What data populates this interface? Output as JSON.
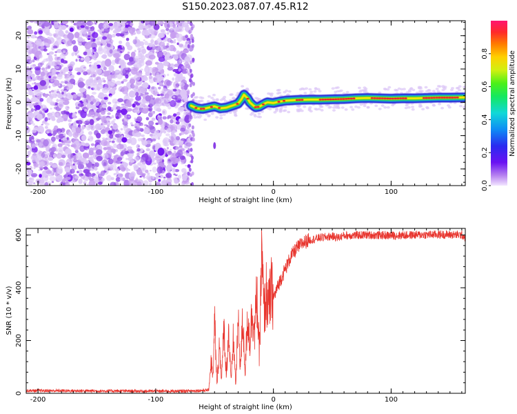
{
  "title": "S150.2023.087.07.45.R12",
  "colors": {
    "snr_line": "#e8352e",
    "spec_background": "#ffffff",
    "spec_noise": [
      "#dcc6f7",
      "#c79ef0",
      "#a872ea",
      "#8a3fe6",
      "#7010f0"
    ],
    "signal_core": "#e8212e",
    "signal_mid": "#ffe600",
    "signal_edge": "#2ac93a",
    "signal_halo": "#19b6d8",
    "signal_outer": "#2b2bd8"
  },
  "chart_data": [
    {
      "type": "heatmap",
      "title": "",
      "xlabel": "Height of straight line (km)",
      "ylabel": "Frequency (Hz)",
      "xlim": [
        -210,
        163
      ],
      "ylim": [
        -25,
        24.5
      ],
      "xticks": [
        -200,
        -100,
        0,
        100
      ],
      "yticks": [
        -20,
        -10,
        0,
        10,
        20
      ],
      "noise_region_x": [
        -210,
        -70
      ],
      "signal_trace": {
        "x": [
          -70,
          -65,
          -60,
          -55,
          -50,
          -45,
          -40,
          -35,
          -30,
          -27,
          -25,
          -22,
          -20,
          -17,
          -15,
          -12,
          -10,
          -7,
          -5,
          0,
          5,
          10,
          15,
          20,
          30,
          40,
          50,
          60,
          70,
          80,
          90,
          100,
          110,
          120,
          130,
          140,
          150,
          163
        ],
        "y": [
          -1.0,
          -1.8,
          -2.0,
          -1.6,
          -1.2,
          -1.8,
          -1.6,
          -1.0,
          -0.4,
          1.0,
          2.3,
          1.2,
          0.0,
          -1.0,
          -1.5,
          -1.3,
          -0.9,
          -0.3,
          0.0,
          -0.2,
          0.2,
          0.5,
          0.6,
          0.7,
          0.8,
          0.8,
          0.9,
          1.0,
          1.2,
          1.3,
          1.2,
          1.1,
          1.2,
          1.2,
          1.3,
          1.4,
          1.4,
          1.5
        ]
      },
      "colorbar": {
        "label": "Normalized spectral amplitude",
        "range": [
          0,
          1
        ],
        "ticks": [
          "0.0",
          "0.2",
          "0.4",
          "0.6",
          "0.8"
        ],
        "tick_values": [
          0.0,
          0.2,
          0.4,
          0.6,
          0.8
        ]
      }
    },
    {
      "type": "line",
      "title": "",
      "xlabel": "Height of straight line (km)",
      "ylabel": "SNR (10 * v/v)",
      "xlim": [
        -210,
        163
      ],
      "ylim": [
        0,
        625
      ],
      "xticks": [
        -200,
        -100,
        0,
        100
      ],
      "yticks": [
        0,
        200,
        400,
        600
      ],
      "series": [
        {
          "name": "SNR",
          "x": [
            -210,
            -150,
            -100,
            -80,
            -65,
            -55,
            -53,
            -51,
            -50,
            -48,
            -46,
            -44,
            -42,
            -40,
            -38,
            -36,
            -34,
            -32,
            -30,
            -28,
            -26,
            -24,
            -22,
            -20,
            -18,
            -16,
            -14,
            -12,
            -10,
            -8,
            -6,
            -4,
            -2,
            0,
            5,
            10,
            15,
            20,
            25,
            30,
            35,
            40,
            50,
            55,
            60,
            80,
            100,
            120,
            140,
            160,
            163
          ],
          "y": [
            10,
            9,
            8,
            8,
            10,
            12,
            120,
            60,
            290,
            30,
            180,
            60,
            250,
            70,
            240,
            40,
            210,
            30,
            270,
            100,
            280,
            80,
            300,
            190,
            320,
            230,
            370,
            140,
            530,
            300,
            380,
            320,
            390,
            360,
            420,
            470,
            520,
            550,
            570,
            580,
            585,
            590,
            595,
            590,
            598,
            600,
            598,
            600,
            602,
            600,
            590
          ]
        }
      ]
    }
  ]
}
